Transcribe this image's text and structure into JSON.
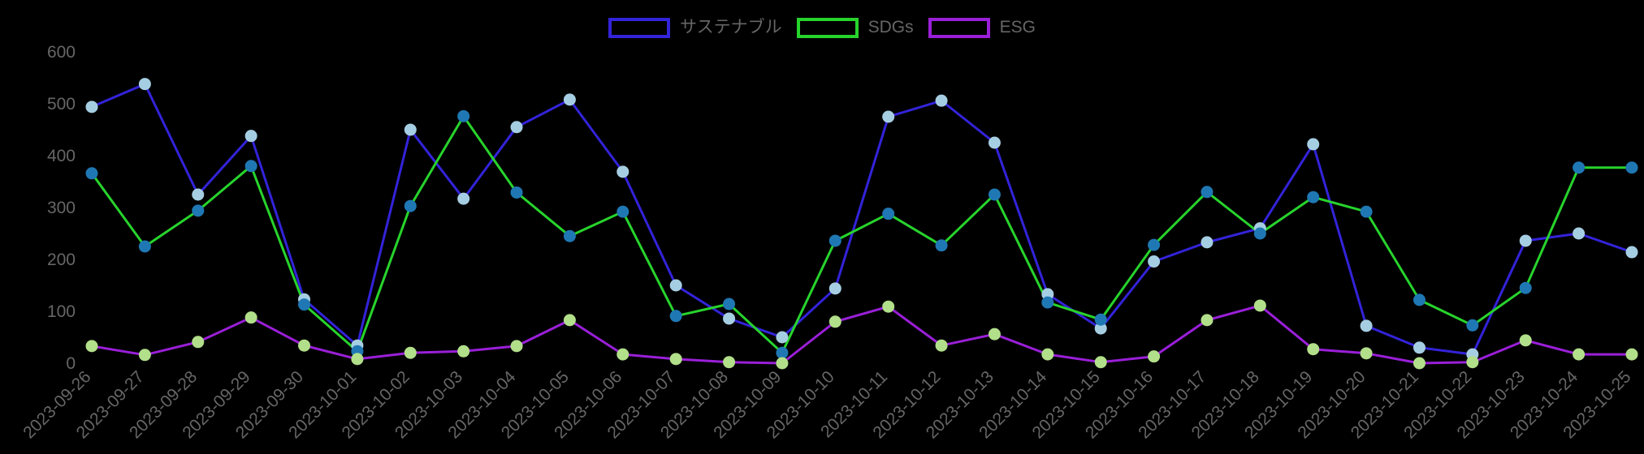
{
  "chart_data": {
    "type": "line",
    "title": "",
    "xlabel": "",
    "ylabel": "",
    "ylim": [
      0,
      600
    ],
    "yticks": [
      0,
      100,
      200,
      300,
      400,
      500,
      600
    ],
    "grid": false,
    "legend_position": "top-center",
    "categories": [
      "2023-09-26",
      "2023-09-27",
      "2023-09-28",
      "2023-09-29",
      "2023-09-30",
      "2023-10-01",
      "2023-10-02",
      "2023-10-03",
      "2023-10-04",
      "2023-10-05",
      "2023-10-06",
      "2023-10-07",
      "2023-10-08",
      "2023-10-09",
      "2023-10-10",
      "2023-10-11",
      "2023-10-12",
      "2023-10-13",
      "2023-10-14",
      "2023-10-15",
      "2023-10-16",
      "2023-10-17",
      "2023-10-18",
      "2023-10-19",
      "2023-10-20",
      "2023-10-21",
      "2023-10-22",
      "2023-10-23",
      "2023-10-24",
      "2023-10-25"
    ],
    "series": [
      {
        "name": "サステナブル",
        "line_color": "#3323d9",
        "point_color": "#a6cee3",
        "values": [
          494,
          538,
          325,
          438,
          123,
          34,
          450,
          317,
          455,
          508,
          369,
          150,
          86,
          50,
          144,
          475,
          506,
          425,
          133,
          67,
          196,
          233,
          260,
          422,
          72,
          30,
          17,
          236,
          250,
          214
        ]
      },
      {
        "name": "SDGs",
        "line_color": "#27d42c",
        "point_color": "#1f78b4",
        "values": [
          366,
          225,
          294,
          380,
          113,
          23,
          303,
          476,
          329,
          245,
          292,
          91,
          114,
          20,
          236,
          288,
          227,
          325,
          117,
          84,
          228,
          330,
          250,
          320,
          292,
          122,
          73,
          145,
          377,
          377
        ]
      },
      {
        "name": "ESG",
        "line_color": "#9a1fd8",
        "point_color": "#b2df8a",
        "values": [
          33,
          16,
          41,
          88,
          34,
          8,
          20,
          23,
          33,
          83,
          17,
          8,
          2,
          0,
          80,
          109,
          34,
          56,
          17,
          2,
          13,
          83,
          111,
          27,
          19,
          0,
          2,
          44,
          17,
          17
        ]
      }
    ]
  },
  "legend": {
    "items": [
      {
        "label": "サステナブル",
        "color": "#3323d9"
      },
      {
        "label": "SDGs",
        "color": "#27d42c"
      },
      {
        "label": "ESG",
        "color": "#9a1fd8"
      }
    ]
  },
  "colors": {
    "background": "#000000",
    "tick_text": "#666666"
  }
}
